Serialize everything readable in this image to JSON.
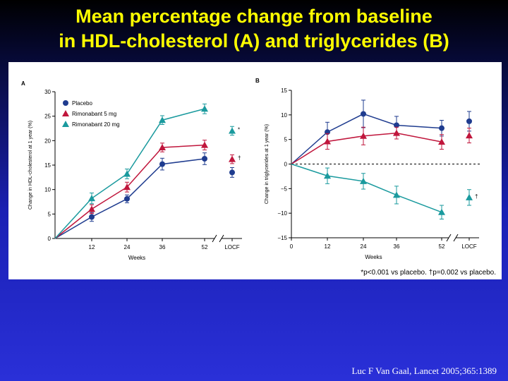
{
  "slide": {
    "title_line1": "Mean percentage change from baseline",
    "title_line2": "in HDL-cholesterol (A) and triglycerides (B)",
    "footnote": "*p<0.001 vs placebo. †p=0.002 vs placebo.",
    "citation": "Luc F Van Gaal, Lancet 2005;365:1389"
  },
  "colors": {
    "placebo": "#1f3c8f",
    "rimonabant_5mg": "#c0163c",
    "rimonabant_20mg": "#1a9a9e"
  },
  "chart_data": [
    {
      "panel": "A",
      "type": "line",
      "xlabel": "Weeks",
      "ylabel": "Change in HDL-cholesterol at 1 year (%)",
      "x_ticks": [
        "12",
        "24",
        "36",
        "52",
        "LOCF"
      ],
      "ylim": [
        0,
        30
      ],
      "y_ticks": [
        0,
        5,
        10,
        15,
        20,
        25,
        30
      ],
      "legend": {
        "placement": "top-left",
        "entries": [
          "Placebo",
          "Rimonabant 5 mg",
          "Rimonabant 20 mg"
        ]
      },
      "series": [
        {
          "name": "Placebo",
          "marker": "circle",
          "color": "#1f3c8f",
          "weeks": [
            0,
            12,
            24,
            36,
            52
          ],
          "values": [
            0,
            4.4,
            8.1,
            15.2,
            16.3
          ],
          "errors": [
            0,
            0.9,
            0.8,
            1.2,
            1.2
          ],
          "locf": 13.5,
          "locf_error": 1.0,
          "locf_annotation": ""
        },
        {
          "name": "Rimonabant 5 mg",
          "marker": "triangle",
          "color": "#c0163c",
          "weeks": [
            0,
            12,
            24,
            36,
            52
          ],
          "values": [
            0,
            6.0,
            10.5,
            18.6,
            19.1
          ],
          "errors": [
            0,
            0.9,
            1.0,
            0.9,
            1.0
          ],
          "locf": 16.2,
          "locf_error": 0.9,
          "locf_annotation": "†"
        },
        {
          "name": "Rimonabant 20 mg",
          "marker": "triangle",
          "color": "#1a9a9e",
          "weeks": [
            0,
            12,
            24,
            36,
            52
          ],
          "values": [
            0,
            8.2,
            13.2,
            24.2,
            26.5
          ],
          "errors": [
            0,
            1.1,
            1.0,
            0.9,
            1.0
          ],
          "locf": 22.0,
          "locf_error": 0.9,
          "locf_annotation": "*"
        }
      ]
    },
    {
      "panel": "B",
      "type": "line",
      "xlabel": "Weeks",
      "ylabel": "Change in triglycerides at 1 year (%)",
      "x_ticks": [
        "0",
        "12",
        "24",
        "36",
        "52",
        "LOCF"
      ],
      "ylim": [
        -15,
        15
      ],
      "y_ticks": [
        -15,
        -10,
        -5,
        0,
        5,
        10,
        15
      ],
      "zero_line": "dashed",
      "series": [
        {
          "name": "Placebo",
          "marker": "circle",
          "color": "#1f3c8f",
          "weeks": [
            0,
            12,
            24,
            36,
            52
          ],
          "values": [
            0,
            6.5,
            10.2,
            7.9,
            7.3
          ],
          "errors": [
            0,
            2.0,
            2.8,
            1.8,
            1.6
          ],
          "locf": 8.7,
          "locf_error": 2.0,
          "locf_annotation": ""
        },
        {
          "name": "Rimonabant 5 mg",
          "marker": "triangle",
          "color": "#c0163c",
          "weeks": [
            0,
            12,
            24,
            36,
            52
          ],
          "values": [
            0,
            4.6,
            5.7,
            6.3,
            4.5
          ],
          "errors": [
            0,
            1.6,
            1.8,
            1.2,
            1.5
          ],
          "locf": 5.8,
          "locf_error": 1.5,
          "locf_annotation": ""
        },
        {
          "name": "Rimonabant 20 mg",
          "marker": "triangle",
          "color": "#1a9a9e",
          "weeks": [
            0,
            12,
            24,
            36,
            52
          ],
          "values": [
            0,
            -2.4,
            -3.5,
            -6.3,
            -9.8
          ],
          "errors": [
            0,
            1.6,
            1.6,
            1.8,
            1.4
          ],
          "locf": -6.8,
          "locf_error": 1.6,
          "locf_annotation": "†"
        }
      ]
    }
  ]
}
